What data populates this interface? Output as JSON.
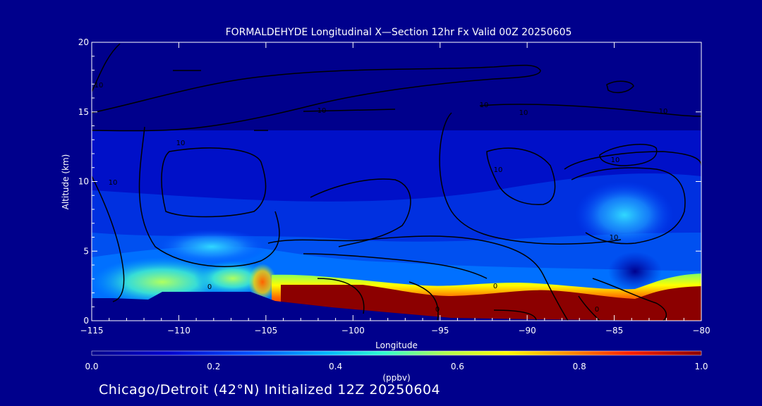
{
  "chart_data": {
    "type": "heatmap",
    "title": "FORMALDEHYDE Longitudinal X—Section 12hr  Fx Valid 00Z 20250605",
    "xlabel": "Longitude",
    "ylabel": "Altitude (km)",
    "xlim": [
      -115,
      -80
    ],
    "ylim": [
      0,
      20
    ],
    "x_ticks": [
      "−115",
      "−110",
      "−105",
      "−100",
      "−95",
      "−90",
      "−85",
      "−80"
    ],
    "y_ticks": [
      "0",
      "5",
      "10",
      "15",
      "20"
    ],
    "colorbar": {
      "label": "(ppbv)",
      "range": [
        0.0,
        1.0
      ],
      "ticks": [
        "0.0",
        "0.2",
        "0.4",
        "0.6",
        "0.8",
        "1.0"
      ]
    },
    "contour_labels": [
      "0",
      "0",
      "0",
      "0",
      "10",
      "10",
      "10",
      "10",
      "10",
      "10",
      "10",
      "10",
      "10",
      "10"
    ],
    "terrain_height_km": [
      {
        "lon": -115,
        "km": 1.6
      },
      {
        "lon": -111,
        "km": 2.0
      },
      {
        "lon": -106,
        "km": 2.0
      },
      {
        "lon": -105,
        "km": 1.4
      },
      {
        "lon": -103,
        "km": 1.2
      },
      {
        "lon": -100,
        "km": 0.9
      },
      {
        "lon": -95,
        "km": 0.6
      },
      {
        "lon": -90,
        "km": 0.4
      },
      {
        "lon": -85,
        "km": 0.3
      },
      {
        "lon": -80,
        "km": 0.2
      }
    ],
    "surface_formaldehyde_ppbv": [
      {
        "lon": -115,
        "value": 0.35
      },
      {
        "lon": -110,
        "value": 0.45
      },
      {
        "lon": -106,
        "value": 0.6
      },
      {
        "lon": -104,
        "value": 1.0
      },
      {
        "lon": -95,
        "value": 1.0
      },
      {
        "lon": -85,
        "value": 1.0
      },
      {
        "lon": -80,
        "value": 1.0
      }
    ]
  },
  "footer": "Chicago/Detroit (42°N) Initialized 12Z 20250604",
  "colors": {
    "background": "#00008c",
    "colormap": [
      "#00008c",
      "#0000cd",
      "#0050ff",
      "#00b4ff",
      "#30ffd0",
      "#b0ff50",
      "#ffff00",
      "#ff9000",
      "#ff2000",
      "#8c0000"
    ]
  }
}
